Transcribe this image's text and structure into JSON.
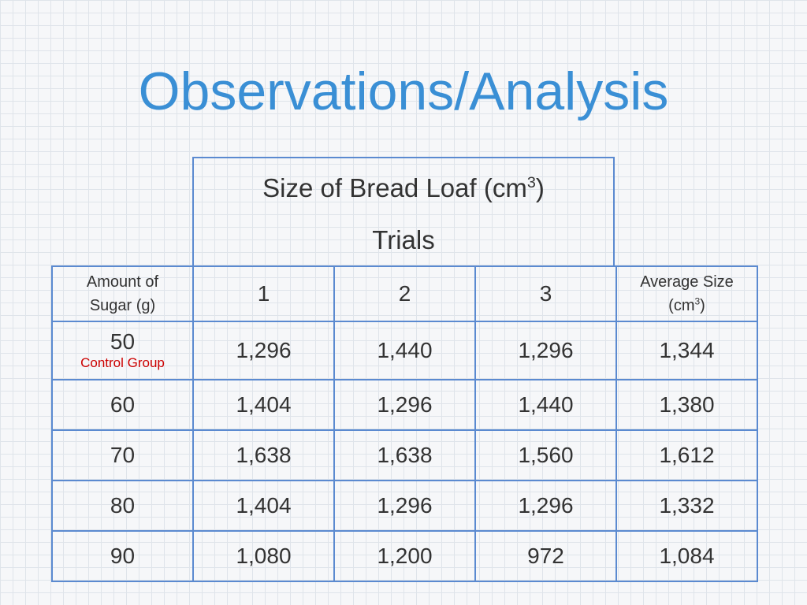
{
  "slide": {
    "title": "Observations/Analysis"
  },
  "header_box": {
    "measure_label": "Size of Bread Loaf (cm",
    "measure_sup": "3",
    "measure_close": ")",
    "trials_label": "Trials"
  },
  "table": {
    "col_sugar_line1": "Amount of",
    "col_sugar_line2": "Sugar (g)",
    "trial_headers": [
      "1",
      "2",
      "3"
    ],
    "avg_line1": "Average Size",
    "avg_line2_prefix": "(cm",
    "avg_line2_sup": "3",
    "avg_line2_close": ")",
    "control_label": "Control Group",
    "rows": [
      {
        "sugar": "50",
        "t1": "1,296",
        "t2": "1,440",
        "t3": "1,296",
        "avg": "1,344"
      },
      {
        "sugar": "60",
        "t1": "1,404",
        "t2": "1,296",
        "t3": "1,440",
        "avg": "1,380"
      },
      {
        "sugar": "70",
        "t1": "1,638",
        "t2": "1,638",
        "t3": "1,560",
        "avg": "1,612"
      },
      {
        "sugar": "80",
        "t1": "1,404",
        "t2": "1,296",
        "t3": "1,296",
        "avg": "1,332"
      },
      {
        "sugar": "90",
        "t1": "1,080",
        "t2": "1,200",
        "t3": "972",
        "avg": "1,084"
      }
    ]
  },
  "colors": {
    "title": "#3a8fd5",
    "border": "#5b8ad0",
    "control": "#cc0000",
    "text": "#333333"
  }
}
